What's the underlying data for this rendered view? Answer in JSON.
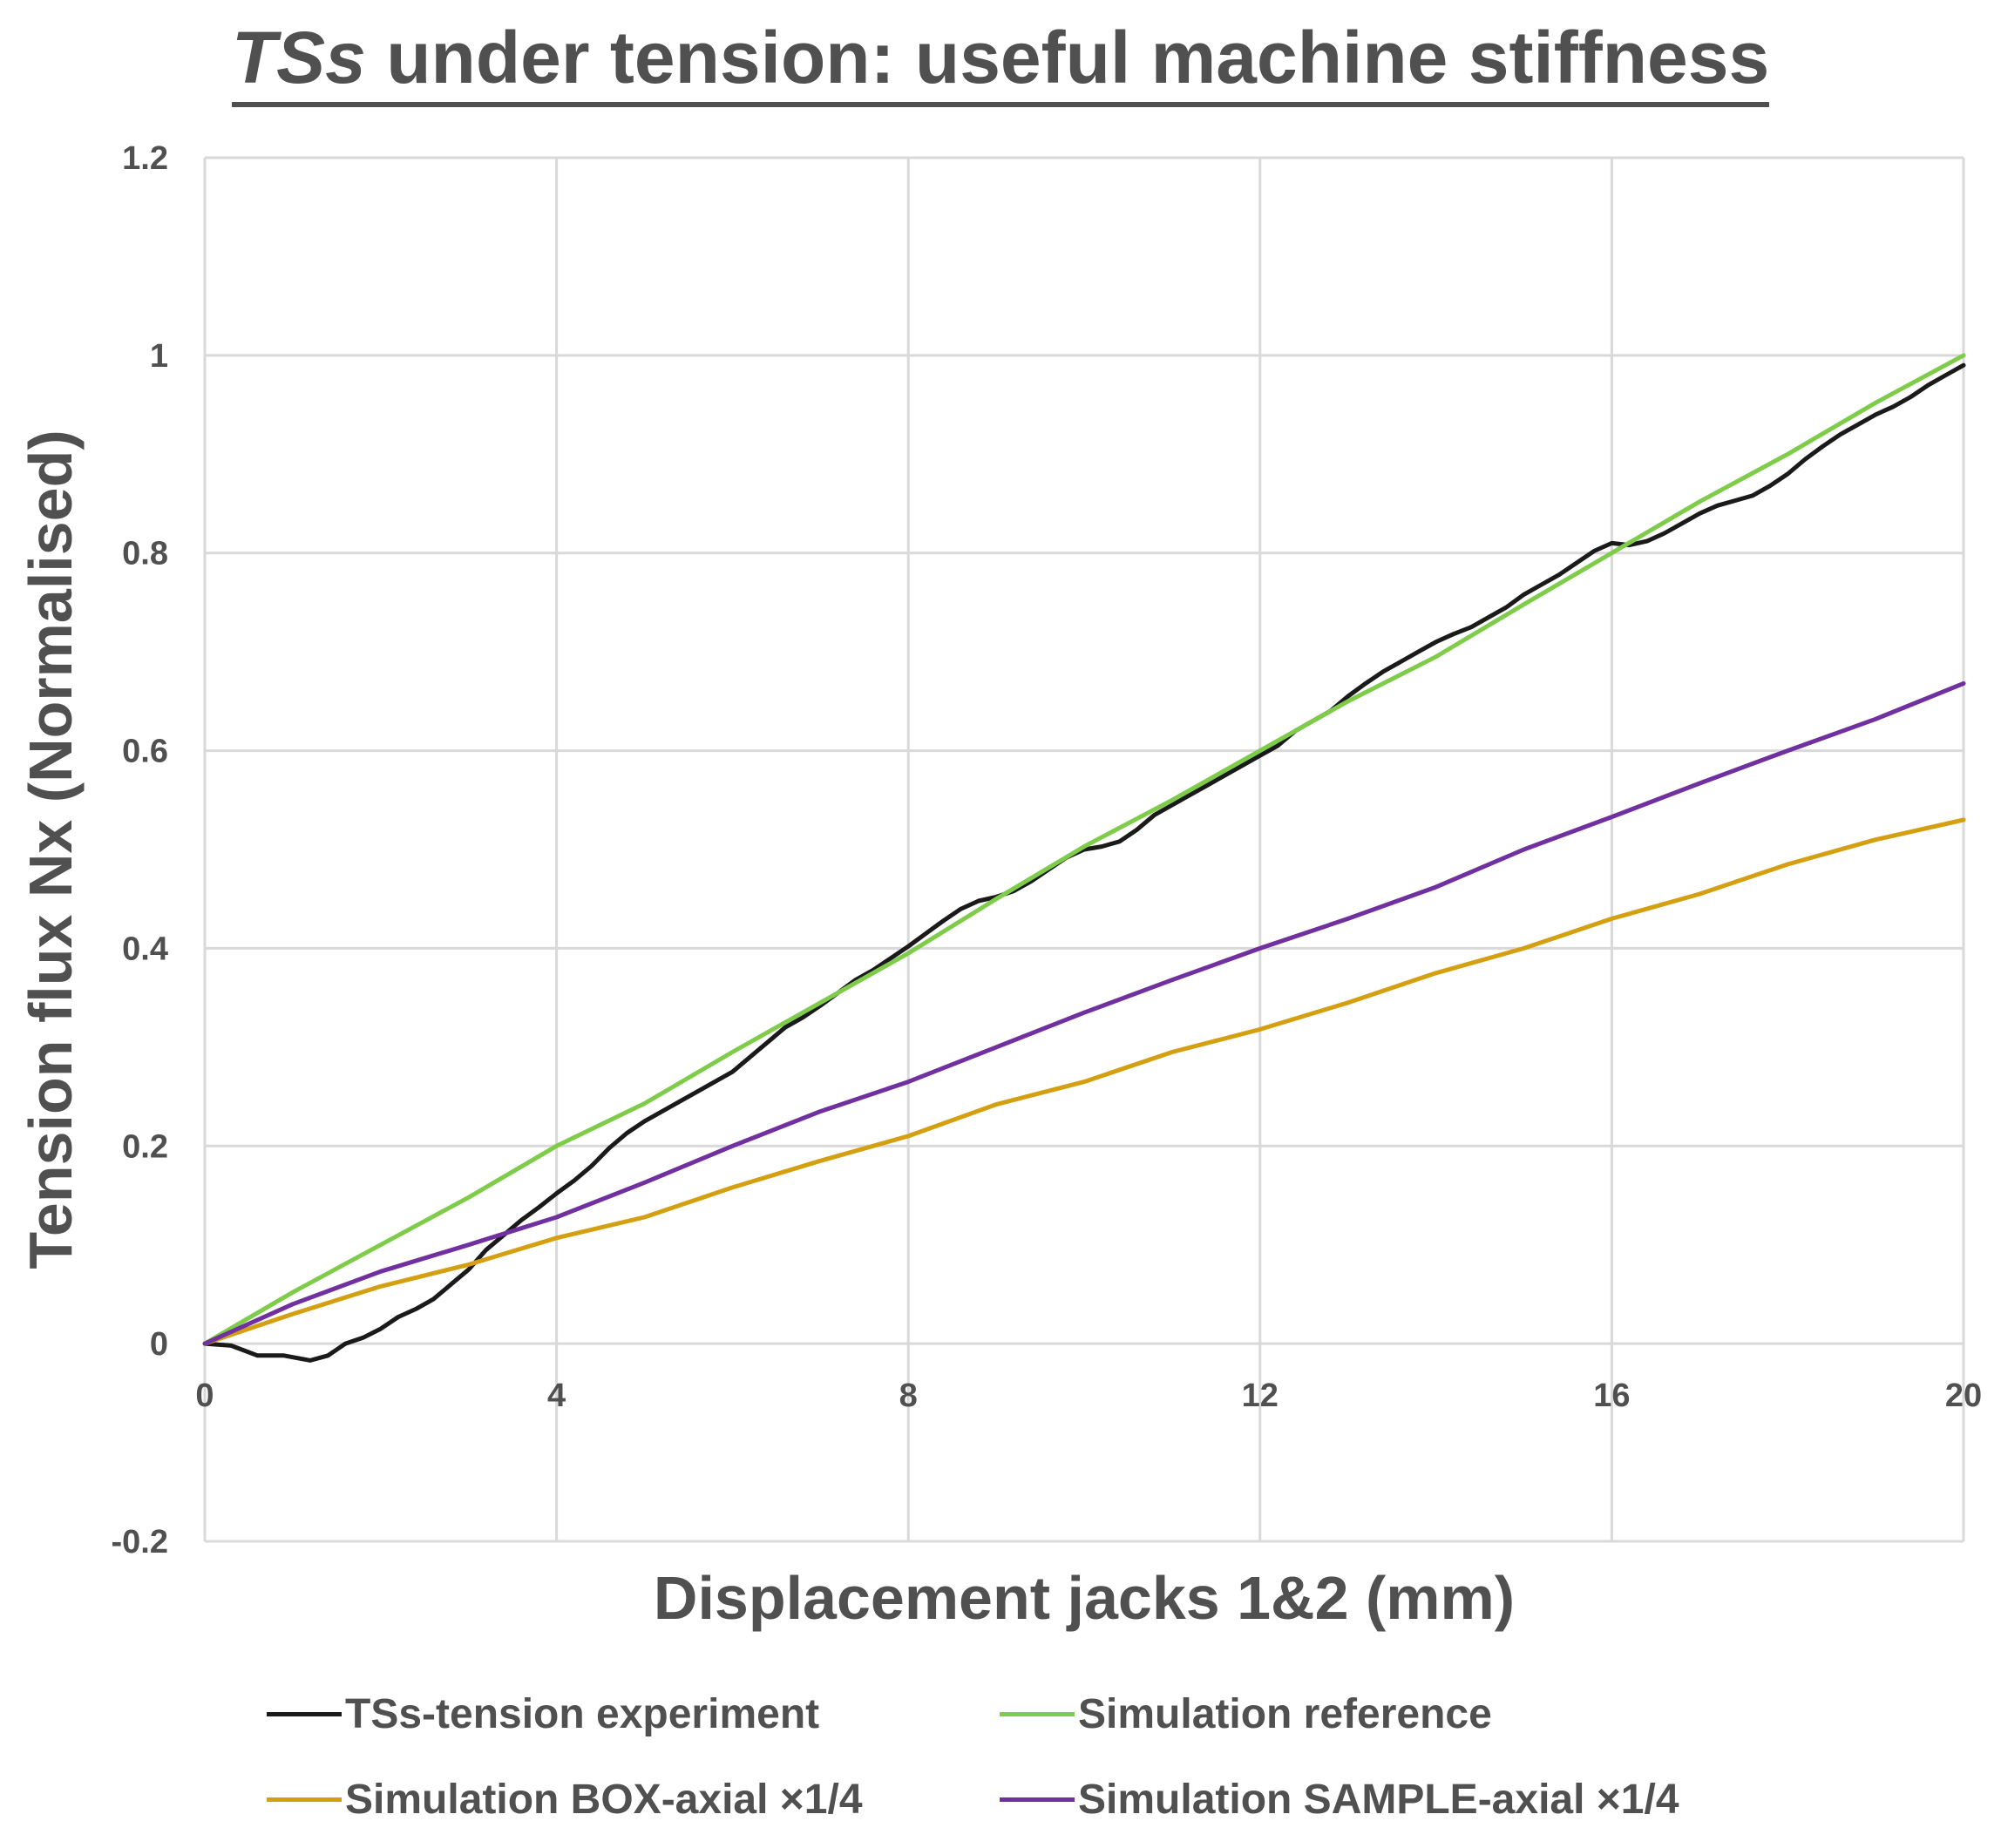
{
  "title": {
    "emphasis": "TSs",
    "rest": " under tension: useful machine stiffness"
  },
  "chart_data": {
    "type": "line",
    "title": "TSs under tension: useful machine stiffness",
    "xlabel": "Displacement jacks 1&2 (mm)",
    "ylabel": "Tension flux Nx (Normalised)",
    "xlim": [
      0,
      20
    ],
    "ylim": [
      -0.2,
      1.2
    ],
    "xticks": [
      0,
      4,
      8,
      12,
      16,
      20
    ],
    "yticks": [
      -0.2,
      0,
      0.2,
      0.4,
      0.6,
      0.8,
      1,
      1.2
    ],
    "xtick_labels": [
      "0",
      "4",
      "8",
      "12",
      "16",
      "20"
    ],
    "ytick_labels": [
      "-0.2",
      "0",
      "0.2",
      "0.4",
      "0.6",
      "0.8",
      "1",
      "1.2"
    ],
    "grid": true,
    "legend_position": "bottom",
    "series": [
      {
        "name": "TSs-tension experiment",
        "color": "#1a1a1a",
        "x": [
          0,
          0.3,
          0.6,
          0.9,
          1.2,
          1.4,
          1.6,
          1.8,
          2.0,
          2.2,
          2.4,
          2.6,
          2.8,
          3.0,
          3.2,
          3.4,
          3.6,
          3.8,
          4.0,
          4.2,
          4.4,
          4.6,
          4.8,
          5.0,
          5.2,
          5.4,
          5.6,
          5.8,
          6.0,
          6.2,
          6.4,
          6.6,
          6.8,
          7.0,
          7.2,
          7.4,
          7.6,
          7.8,
          8.0,
          8.2,
          8.4,
          8.6,
          8.8,
          9.0,
          9.2,
          9.4,
          9.6,
          9.8,
          10.0,
          10.2,
          10.4,
          10.6,
          10.8,
          11.0,
          11.2,
          11.4,
          11.6,
          11.8,
          12.0,
          12.2,
          12.4,
          12.6,
          12.8,
          13.0,
          13.2,
          13.4,
          13.6,
          13.8,
          14.0,
          14.2,
          14.4,
          14.6,
          14.8,
          15.0,
          15.2,
          15.4,
          15.6,
          15.8,
          16.0,
          16.2,
          16.4,
          16.6,
          16.8,
          17.0,
          17.2,
          17.4,
          17.6,
          17.8,
          18.0,
          18.2,
          18.4,
          18.6,
          18.8,
          19.0,
          19.2,
          19.4,
          19.6,
          19.8,
          20.0
        ],
        "y": [
          0,
          -0.002,
          -0.012,
          -0.012,
          -0.017,
          -0.012,
          0.0,
          0.006,
          0.015,
          0.027,
          0.035,
          0.045,
          0.06,
          0.075,
          0.095,
          0.11,
          0.125,
          0.138,
          0.152,
          0.165,
          0.18,
          0.198,
          0.213,
          0.225,
          0.235,
          0.245,
          0.255,
          0.265,
          0.275,
          0.29,
          0.305,
          0.32,
          0.33,
          0.342,
          0.355,
          0.368,
          0.378,
          0.39,
          0.402,
          0.415,
          0.428,
          0.44,
          0.448,
          0.452,
          0.458,
          0.468,
          0.48,
          0.492,
          0.5,
          0.503,
          0.508,
          0.52,
          0.535,
          0.545,
          0.555,
          0.565,
          0.575,
          0.585,
          0.595,
          0.605,
          0.62,
          0.63,
          0.64,
          0.655,
          0.668,
          0.68,
          0.69,
          0.7,
          0.71,
          0.718,
          0.725,
          0.735,
          0.745,
          0.758,
          0.768,
          0.778,
          0.79,
          0.802,
          0.81,
          0.808,
          0.812,
          0.82,
          0.83,
          0.84,
          0.848,
          0.853,
          0.858,
          0.868,
          0.88,
          0.895,
          0.908,
          0.92,
          0.93,
          0.94,
          0.948,
          0.958,
          0.97,
          0.98,
          0.99
        ]
      },
      {
        "name": "Simulation reference",
        "color": "#7fcc4a",
        "x": [
          0,
          1,
          2,
          3,
          4,
          5,
          6,
          7,
          8,
          9,
          10,
          11,
          12,
          13,
          14,
          15,
          16,
          17,
          18,
          19,
          20
        ],
        "y": [
          0,
          0.052,
          0.1,
          0.148,
          0.2,
          0.243,
          0.295,
          0.345,
          0.395,
          0.45,
          0.503,
          0.55,
          0.6,
          0.65,
          0.695,
          0.748,
          0.8,
          0.852,
          0.9,
          0.952,
          1.0
        ]
      },
      {
        "name": "Simulation BOX-axial ×1/4",
        "color": "#d4a012",
        "x": [
          0,
          1,
          2,
          3,
          4,
          5,
          6,
          7,
          8,
          9,
          10,
          11,
          12,
          13,
          14,
          15,
          16,
          17,
          18,
          19,
          20
        ],
        "y": [
          0,
          0.03,
          0.058,
          0.08,
          0.107,
          0.128,
          0.158,
          0.185,
          0.21,
          0.242,
          0.265,
          0.295,
          0.318,
          0.345,
          0.375,
          0.4,
          0.43,
          0.455,
          0.485,
          0.51,
          0.53
        ]
      },
      {
        "name": "Simulation SAMPLE-axial ×1/4",
        "color": "#7030a0",
        "x": [
          0,
          1,
          2,
          3,
          4,
          5,
          6,
          7,
          8,
          9,
          10,
          11,
          12,
          13,
          14,
          15,
          16,
          17,
          18,
          19,
          20
        ],
        "y": [
          0,
          0.04,
          0.073,
          0.1,
          0.128,
          0.163,
          0.2,
          0.235,
          0.265,
          0.3,
          0.335,
          0.368,
          0.4,
          0.43,
          0.462,
          0.5,
          0.533,
          0.567,
          0.6,
          0.632,
          0.668
        ]
      }
    ]
  },
  "legend": {
    "items": [
      {
        "label": "TSs-tension experiment",
        "color": "#1a1a1a"
      },
      {
        "label": "Simulation reference",
        "color": "#7fcc4a"
      },
      {
        "label": "Simulation BOX-axial ×1/4",
        "color": "#d4a012"
      },
      {
        "label": "Simulation SAMPLE-axial ×1/4",
        "color": "#7030a0"
      }
    ]
  }
}
